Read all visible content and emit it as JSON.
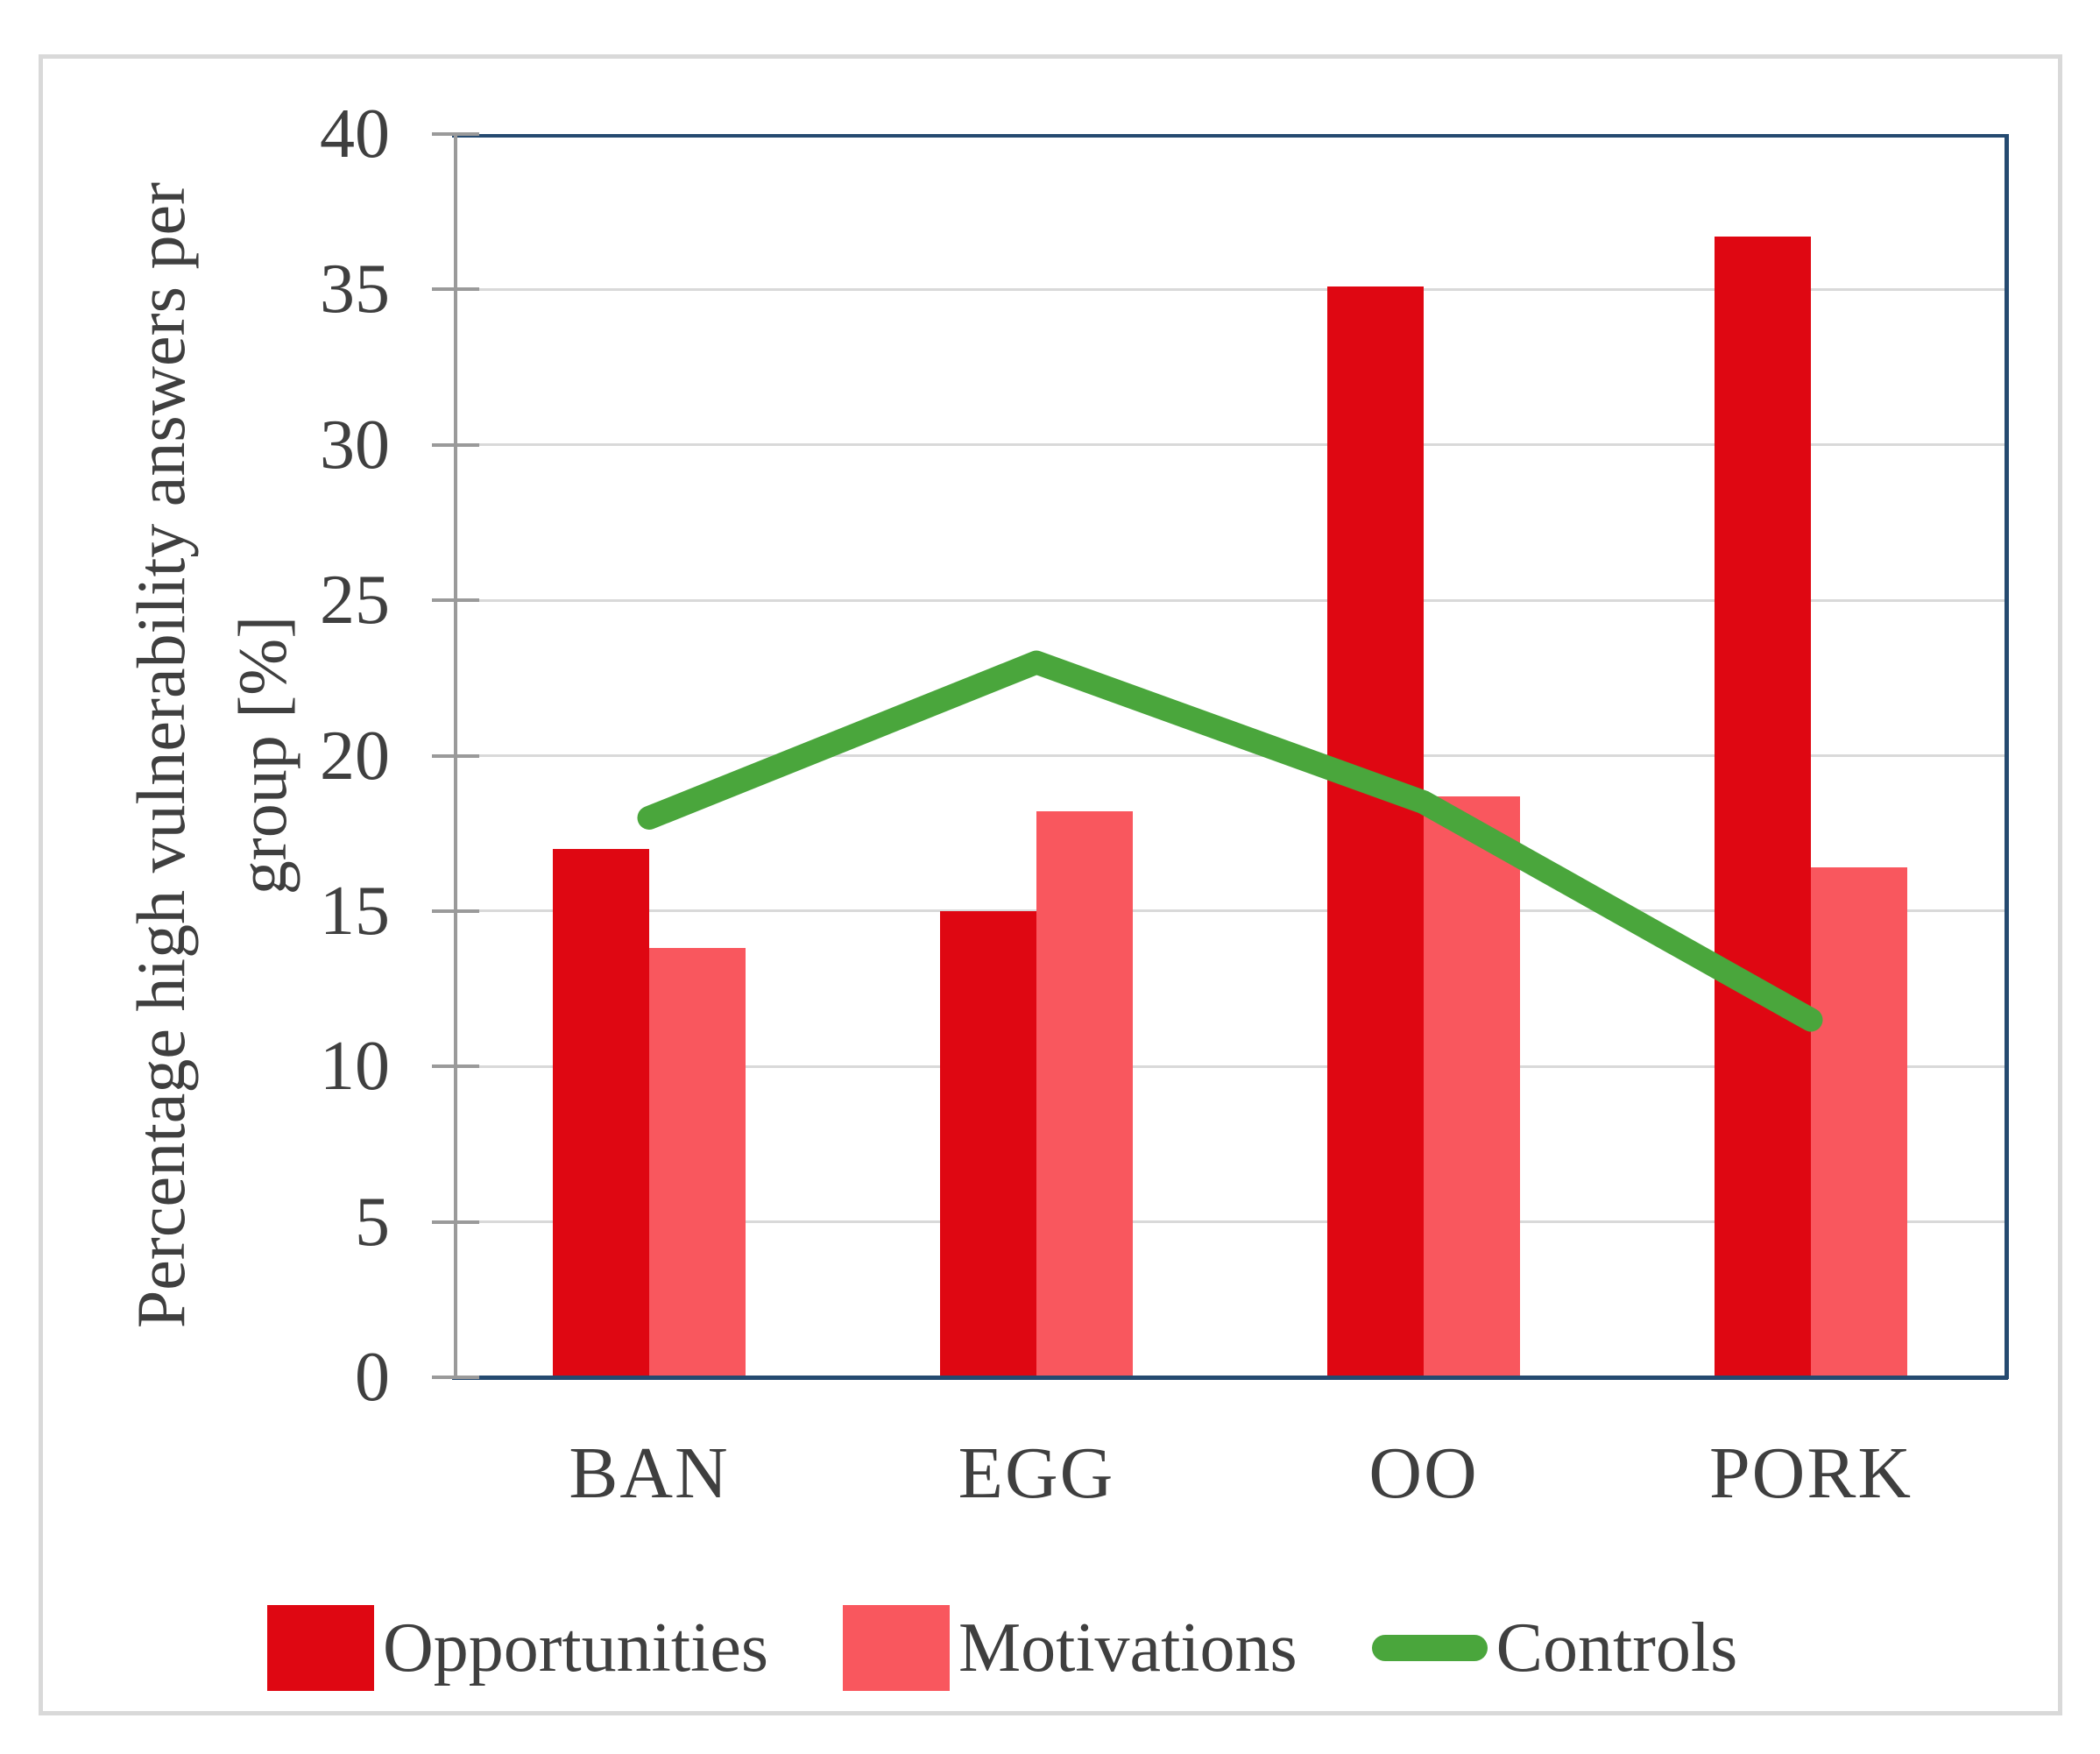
{
  "figure": {
    "background": "#ffffff",
    "frame_border_color": "#d9d9d9"
  },
  "chart_data": {
    "type": "bar",
    "subtype": "clustered-bars-with-overlaid-line",
    "title": "",
    "xlabel": "",
    "ylabel": "Percentage high vulnerability answers per group [%]",
    "ylabel_lines": [
      "Percentage high vulnerability answers per",
      "group [%]"
    ],
    "categories": [
      "BAN",
      "EGG",
      "OO",
      "PORK"
    ],
    "series": [
      {
        "name": "Opportunities",
        "type": "bar",
        "color": "#df0712",
        "values": [
          17.0,
          15.0,
          35.1,
          36.7
        ]
      },
      {
        "name": "Motivations",
        "type": "bar",
        "color": "#f9575e",
        "values": [
          13.8,
          18.2,
          18.7,
          16.4
        ]
      },
      {
        "name": "Controls",
        "type": "line",
        "color": "#4aa63c",
        "values": [
          18.0,
          23.0,
          18.5,
          11.5
        ]
      }
    ],
    "ylim": [
      0,
      40
    ],
    "yticks": [
      0,
      5,
      10,
      15,
      20,
      25,
      30,
      35,
      40
    ],
    "grid": "horizontal",
    "legend_position": "bottom",
    "colors": {
      "plot_border": "#254a70",
      "axis_line": "#9a9a9a",
      "gridline": "#d9d9d9",
      "text": "#3f3f3f"
    }
  }
}
